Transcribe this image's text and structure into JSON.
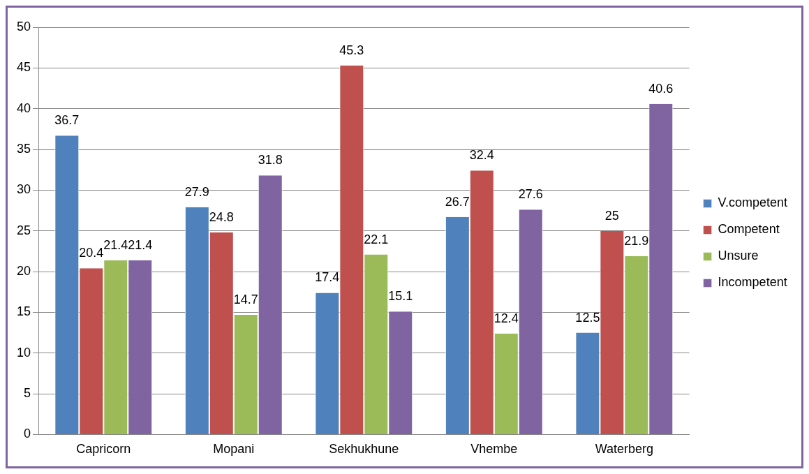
{
  "chart_data": {
    "type": "bar",
    "categories": [
      "Capricorn",
      "Mopani",
      "Sekhukhune",
      "Vhembe",
      "Waterberg"
    ],
    "series": [
      {
        "name": "V.competent",
        "color": "#4f81bd",
        "values": [
          36.7,
          27.9,
          17.4,
          26.7,
          12.5
        ]
      },
      {
        "name": "Competent",
        "color": "#c0504d",
        "values": [
          20.4,
          24.8,
          45.3,
          32.4,
          25
        ]
      },
      {
        "name": "Unsure",
        "color": "#9bbb59",
        "values": [
          21.4,
          14.7,
          22.1,
          12.4,
          21.9
        ]
      },
      {
        "name": "Incompetent",
        "color": "#8064a2",
        "values": [
          21.4,
          31.8,
          15.1,
          27.6,
          40.6
        ]
      }
    ],
    "ylim": [
      0,
      50
    ],
    "yticks": [
      0,
      5,
      10,
      15,
      20,
      25,
      30,
      35,
      40,
      45,
      50
    ],
    "grid": "y",
    "legend": "right",
    "data_labels": true
  }
}
